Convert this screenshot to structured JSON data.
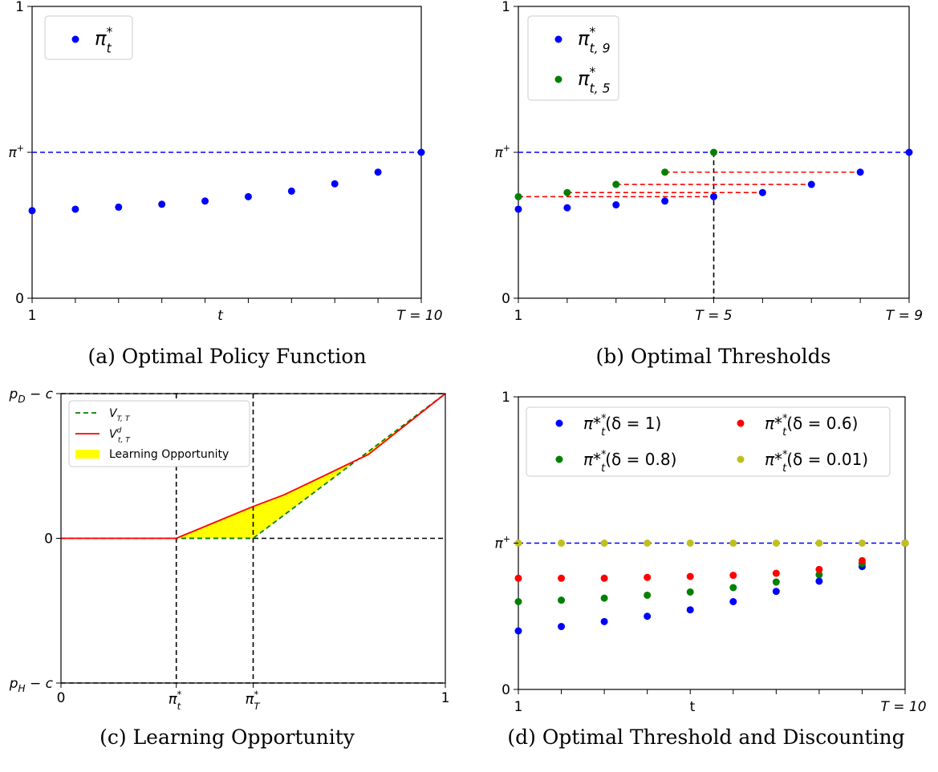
{
  "colors": {
    "blue": "#0000ff",
    "green": "#008000",
    "red": "#ff0000",
    "olive": "#bfbf1f",
    "yellow": "#ffff00",
    "black": "#000000"
  },
  "captions": {
    "a": "(a) Optimal Policy Function",
    "b": "(b) Optimal Thresholds",
    "c": "(c) Learning Opportunity",
    "d": "(d) Optimal Threshold and Discounting"
  },
  "chart_data": [
    {
      "type": "scatter",
      "id": "a",
      "ylim": [
        0,
        1
      ],
      "xlim": [
        1,
        10
      ],
      "ytick_labels": {
        "top": "1",
        "mid": "π⁺",
        "bottom": "0"
      },
      "xtick_labels": {
        "left": "1",
        "mid": "t",
        "right": "T = 10"
      },
      "pi_plus": 0.5,
      "reference_line": {
        "y": 0.5,
        "style": "dashed",
        "color": "blue"
      },
      "legend": {
        "position": "top-left",
        "entries": [
          {
            "label": "π*",
            "subscript": "t",
            "color": "blue"
          }
        ]
      },
      "series": [
        {
          "name": "π_t*",
          "color": "blue",
          "x": [
            1,
            2,
            3,
            4,
            5,
            6,
            7,
            8,
            9,
            10
          ],
          "y": [
            0.3,
            0.305,
            0.312,
            0.322,
            0.333,
            0.348,
            0.367,
            0.392,
            0.432,
            0.5
          ]
        }
      ]
    },
    {
      "type": "scatter",
      "id": "b",
      "ylim": [
        0,
        1
      ],
      "xlim": [
        1,
        9
      ],
      "ytick_labels": {
        "top": "1",
        "mid": "π⁺",
        "bottom": "0"
      },
      "xtick_labels": {
        "left": "1",
        "mid": "T = 5",
        "right": "T = 9"
      },
      "reference_line": {
        "y": 0.5,
        "style": "dashed",
        "color": "blue"
      },
      "vertical_line": {
        "x": 5,
        "style": "dashed",
        "color": "black"
      },
      "legend": {
        "position": "top-left",
        "entries": [
          {
            "label": "π*",
            "subscript": "t, 9",
            "color": "blue"
          },
          {
            "label": "π*",
            "subscript": "t, 5",
            "color": "green"
          }
        ]
      },
      "series": [
        {
          "name": "π_t,9*",
          "color": "blue",
          "x": [
            1,
            2,
            3,
            4,
            5,
            6,
            7,
            8,
            9
          ],
          "y": [
            0.305,
            0.31,
            0.32,
            0.333,
            0.348,
            0.362,
            0.39,
            0.432,
            0.5
          ]
        },
        {
          "name": "π_t,5*",
          "color": "green",
          "x": [
            1,
            2,
            3,
            4,
            5
          ],
          "y": [
            0.348,
            0.362,
            0.39,
            0.432,
            0.5
          ]
        }
      ],
      "connectors": [
        {
          "x1": 1,
          "x2": 5,
          "y": 0.348
        },
        {
          "x1": 2,
          "x2": 6,
          "y": 0.362
        },
        {
          "x1": 3,
          "x2": 7,
          "y": 0.39
        },
        {
          "x1": 4,
          "x2": 8,
          "y": 0.432
        }
      ]
    },
    {
      "type": "line",
      "id": "c",
      "xlim": [
        0,
        1
      ],
      "ylim": [
        -1,
        1
      ],
      "ytick_labels": {
        "top": "p_D − c",
        "mid": "0",
        "bottom": "p_H − c"
      },
      "xtick_labels": [
        "0",
        "π*_t",
        "π*_T",
        "1"
      ],
      "xtick_values": [
        0,
        0.3,
        0.5,
        1
      ],
      "guides": {
        "horizontal": [
          1,
          0,
          -1
        ],
        "vertical": [
          0.3,
          0.5
        ]
      },
      "legend": {
        "position": "top-left",
        "entries": [
          {
            "label": "V",
            "subscript": "T, T",
            "color": "green",
            "style": "dashed"
          },
          {
            "label": "V",
            "superscript": "d",
            "subscript": "t, T",
            "color": "red",
            "style": "solid"
          },
          {
            "label": "Learning Opportunity",
            "color": "yellow",
            "style": "patch"
          }
        ]
      },
      "series": [
        {
          "name": "V_T,T",
          "color": "green",
          "style": "dashed",
          "x": [
            0,
            0.5,
            1
          ],
          "y": [
            0,
            0,
            1
          ]
        },
        {
          "name": "V^d_t,T",
          "color": "red",
          "style": "solid",
          "x": [
            0,
            0.3,
            0.5,
            0.58,
            0.8,
            1
          ],
          "y": [
            0,
            0,
            0.22,
            0.3,
            0.58,
            1
          ]
        }
      ],
      "fill_region": {
        "label": "Learning Opportunity",
        "between": [
          "V^d_t,T",
          "V_T,T"
        ],
        "x_range": [
          0.3,
          1
        ]
      }
    },
    {
      "type": "scatter",
      "id": "d",
      "ylim": [
        0,
        1
      ],
      "xlim": [
        1,
        10
      ],
      "ytick_labels": {
        "top": "1",
        "mid": "π⁺",
        "bottom": "0"
      },
      "xtick_labels": {
        "left": "1",
        "mid": "t",
        "right": "T = 10"
      },
      "reference_line": {
        "y": 0.5,
        "style": "dashed",
        "color": "blue"
      },
      "legend": {
        "position": "top",
        "entries": [
          {
            "label": "π*",
            "subscript": "t",
            "rest": "(δ = 1)",
            "color": "blue"
          },
          {
            "label": "π*",
            "subscript": "t",
            "rest": "(δ = 0.8)",
            "color": "green"
          },
          {
            "label": "π*",
            "subscript": "t",
            "rest": "(δ = 0.6)",
            "color": "red"
          },
          {
            "label": "π*",
            "subscript": "t",
            "rest": "(δ = 0.01)",
            "color": "olive"
          }
        ]
      },
      "series": [
        {
          "name": "δ = 1",
          "color": "blue",
          "x": [
            1,
            2,
            3,
            4,
            5,
            6,
            7,
            8,
            9,
            10
          ],
          "y": [
            0.2,
            0.215,
            0.232,
            0.25,
            0.272,
            0.3,
            0.335,
            0.37,
            0.42,
            0.5
          ]
        },
        {
          "name": "δ = 0.8",
          "color": "green",
          "x": [
            1,
            2,
            3,
            4,
            5,
            6,
            7,
            8,
            9,
            10
          ],
          "y": [
            0.3,
            0.305,
            0.312,
            0.322,
            0.333,
            0.348,
            0.367,
            0.392,
            0.43,
            0.5
          ]
        },
        {
          "name": "δ = 0.6",
          "color": "red",
          "x": [
            1,
            2,
            3,
            4,
            5,
            6,
            7,
            8,
            9,
            10
          ],
          "y": [
            0.38,
            0.38,
            0.38,
            0.383,
            0.386,
            0.39,
            0.397,
            0.41,
            0.44,
            0.5
          ]
        },
        {
          "name": "δ = 0.01",
          "color": "olive",
          "x": [
            1,
            2,
            3,
            4,
            5,
            6,
            7,
            8,
            9,
            10
          ],
          "y": [
            0.5,
            0.5,
            0.5,
            0.5,
            0.5,
            0.5,
            0.5,
            0.5,
            0.5,
            0.5
          ]
        }
      ]
    }
  ]
}
